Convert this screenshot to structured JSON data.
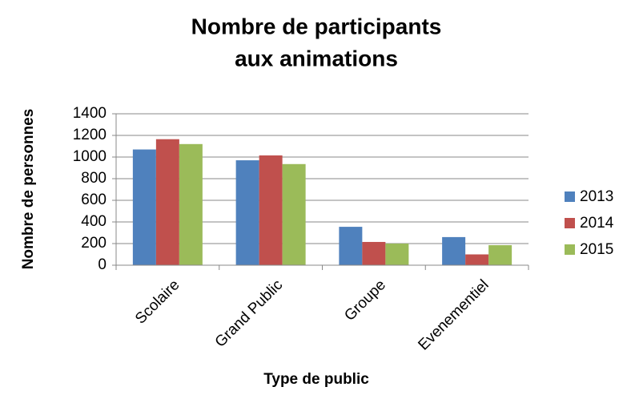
{
  "chart_data": {
    "type": "bar",
    "title": "Nombre de participants",
    "subtitle": "aux animations",
    "x_label": "Type de public",
    "y_label": "Nombre de personnes",
    "categories": [
      "Scolaire",
      "Grand Public",
      "Groupe",
      "Evenementiel"
    ],
    "series": [
      {
        "name": "2013",
        "color": "#4f81bd",
        "values": [
          1070,
          970,
          355,
          260
        ]
      },
      {
        "name": "2014",
        "color": "#c0504d",
        "values": [
          1165,
          1015,
          215,
          100
        ]
      },
      {
        "name": "2015",
        "color": "#9bbb59",
        "values": [
          1120,
          935,
          200,
          185
        ]
      }
    ],
    "ylim": [
      0,
      1400
    ],
    "yticks": [
      0,
      200,
      400,
      600,
      800,
      1000,
      1200,
      1400
    ],
    "grid": true,
    "legend": "right"
  }
}
